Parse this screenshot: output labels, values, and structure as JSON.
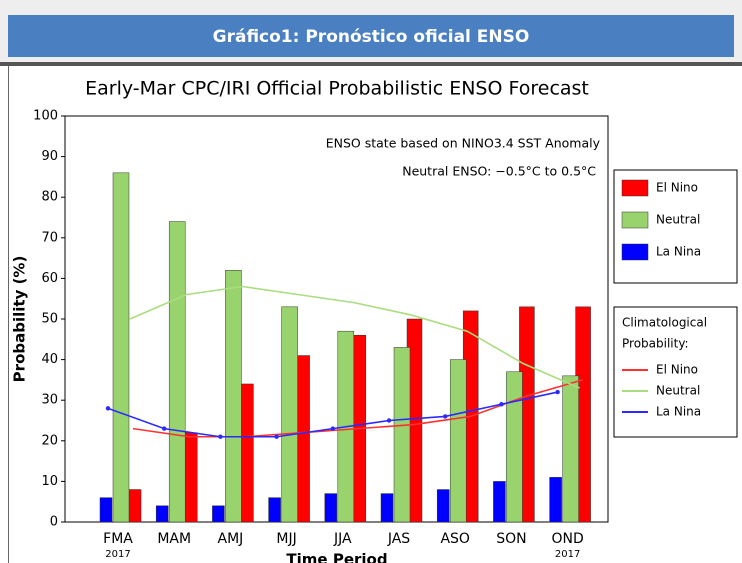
{
  "header": {
    "title": "Gráfico1: Pronóstico oficial ENSO"
  },
  "chart_data": {
    "type": "bar",
    "title": "Early-Mar CPC/IRI Official Probabilistic ENSO Forecast",
    "annotations": [
      "ENSO state based on NINO3.4 SST Anomaly",
      "Neutral ENSO: −0.5°C to 0.5°C"
    ],
    "x_label": "Time Period",
    "y_label": "Probability (%)",
    "categories": [
      "FMA",
      "MAM",
      "AMJ",
      "MJJ",
      "JJA",
      "JAS",
      "ASO",
      "SON",
      "OND"
    ],
    "year_labels": [
      "2017",
      null,
      null,
      null,
      null,
      null,
      null,
      null,
      "2017"
    ],
    "ylim": [
      0,
      100
    ],
    "yticks": [
      0,
      10,
      20,
      30,
      40,
      50,
      60,
      70,
      80,
      90,
      100
    ],
    "grid": false,
    "series": [
      {
        "name": "El Nino",
        "color": "#ff0000",
        "values": [
          8,
          22,
          34,
          41,
          46,
          50,
          52,
          53,
          53
        ]
      },
      {
        "name": "Neutral",
        "color": "#99d36e",
        "values": [
          86,
          74,
          62,
          53,
          47,
          43,
          40,
          37,
          36
        ]
      },
      {
        "name": "La Nina",
        "color": "#0000ff",
        "values": [
          6,
          4,
          4,
          6,
          7,
          7,
          8,
          10,
          11
        ]
      }
    ],
    "climatology": {
      "title": [
        "Climatological",
        "Probability:"
      ],
      "series": [
        {
          "name": "El Nino",
          "color": "#ff3030",
          "values": [
            23,
            21,
            21,
            22,
            23,
            24,
            26,
            31,
            35
          ]
        },
        {
          "name": "Neutral",
          "color": "#aadd80",
          "values": [
            50,
            56,
            58,
            56,
            54,
            51,
            47,
            39,
            33
          ]
        },
        {
          "name": "La Nina",
          "color": "#2a2aff",
          "values": [
            28,
            23,
            21,
            21,
            23,
            25,
            26,
            29,
            32
          ]
        }
      ]
    }
  }
}
